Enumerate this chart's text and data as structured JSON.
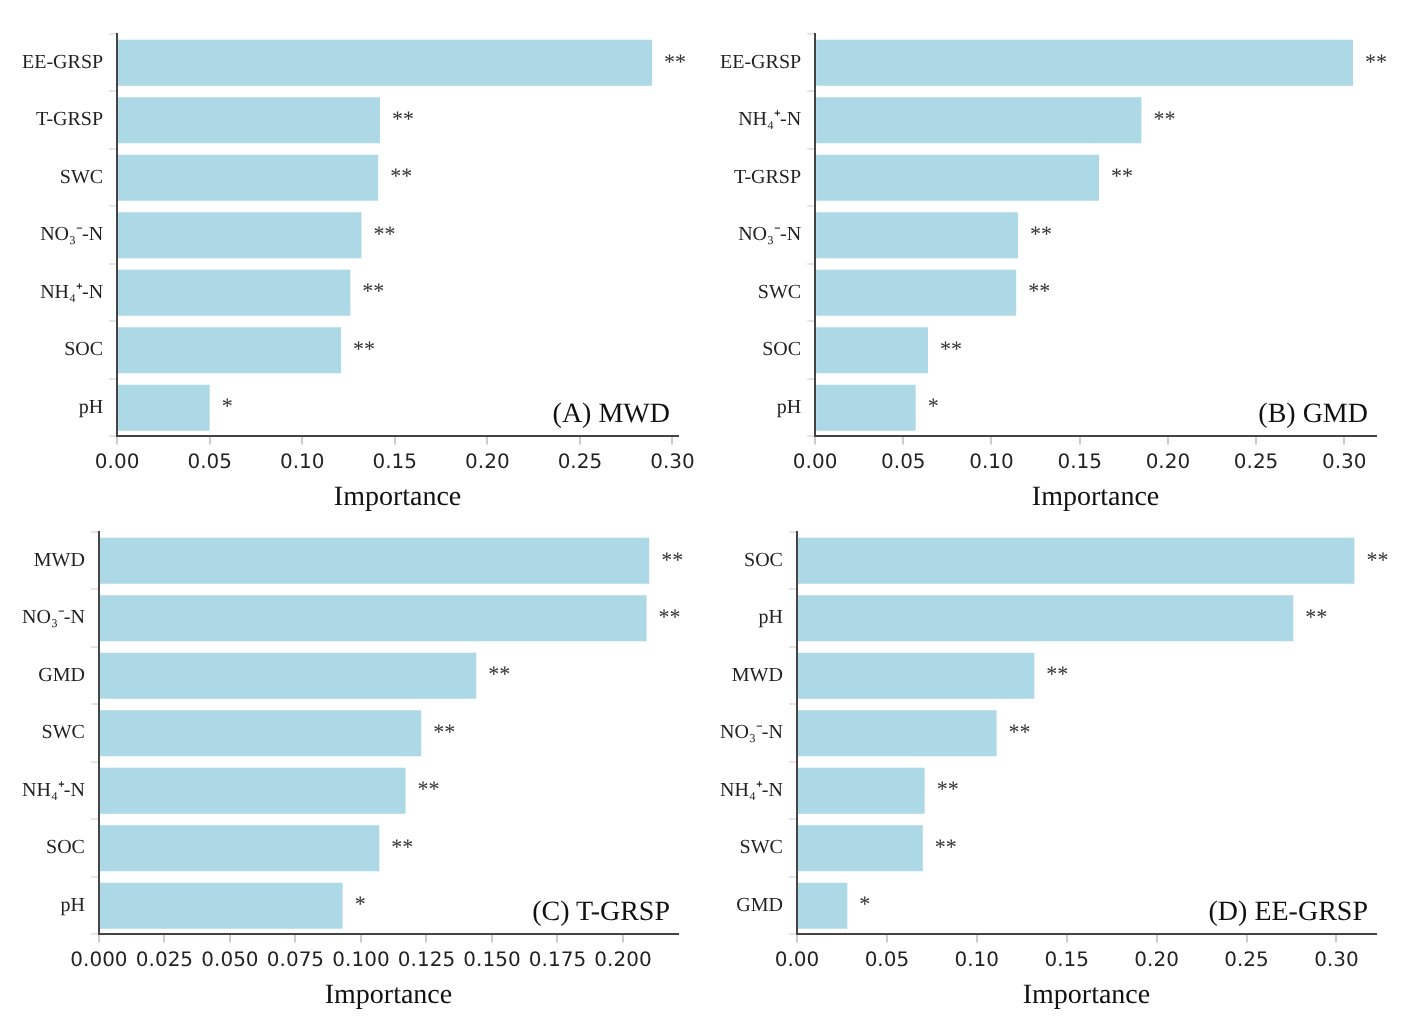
{
  "chart_data": [
    {
      "type": "bar",
      "orientation": "horizontal",
      "categories": [
        "EE-GRSP",
        "T-GRSP",
        "SWC",
        "NO₃⁻-N",
        "NH₄⁺-N",
        "SOC",
        "pH"
      ],
      "values": [
        0.289,
        0.142,
        0.141,
        0.132,
        0.126,
        0.121,
        0.05
      ],
      "value_labels": [
        "**",
        "**",
        "**",
        "**",
        "**",
        "**",
        "*"
      ],
      "color": "#add8e6",
      "xlim": [
        0,
        0.303
      ],
      "xticks": [
        {
          "value": 0,
          "label": "0.00"
        },
        {
          "value": 0.05,
          "label": "0.05"
        },
        {
          "value": 0.1,
          "label": "0.10"
        },
        {
          "value": 0.15,
          "label": "0.15"
        },
        {
          "value": 0.2,
          "label": "0.20"
        },
        {
          "value": 0.25,
          "label": "0.25"
        },
        {
          "value": 0.3,
          "label": "0.30"
        }
      ],
      "xlabel": "Importance",
      "annotations": [
        "(A) MWD"
      ],
      "grid": false,
      "legend": false
    },
    {
      "type": "bar",
      "orientation": "horizontal",
      "categories": [
        "EE-GRSP",
        "NH₄⁺-N",
        "T-GRSP",
        "NO₃⁻-N",
        "SWC",
        "SOC",
        "pH"
      ],
      "values": [
        0.305,
        0.185,
        0.161,
        0.115,
        0.114,
        0.064,
        0.057
      ],
      "value_labels": [
        "**",
        "**",
        "**",
        "**",
        "**",
        "**",
        "*"
      ],
      "color": "#add8e6",
      "xlim": [
        0,
        0.318
      ],
      "xticks": [
        {
          "value": 0,
          "label": "0.00"
        },
        {
          "value": 0.05,
          "label": "0.05"
        },
        {
          "value": 0.1,
          "label": "0.10"
        },
        {
          "value": 0.15,
          "label": "0.15"
        },
        {
          "value": 0.2,
          "label": "0.20"
        },
        {
          "value": 0.25,
          "label": "0.25"
        },
        {
          "value": 0.3,
          "label": "0.30"
        }
      ],
      "xlabel": "Importance",
      "annotations": [
        "(B) GMD"
      ],
      "grid": false,
      "legend": false
    },
    {
      "type": "bar",
      "orientation": "horizontal",
      "categories": [
        "MWD",
        "NO₃⁻-N",
        "GMD",
        "SWC",
        "NH₄⁺-N",
        "SOC",
        "pH"
      ],
      "values": [
        0.21,
        0.209,
        0.144,
        0.123,
        0.117,
        0.107,
        0.093
      ],
      "value_labels": [
        "**",
        "**",
        "**",
        "**",
        "**",
        "**",
        "*"
      ],
      "color": "#add8e6",
      "xlim": [
        0,
        0.221
      ],
      "xticks": [
        {
          "value": 0,
          "label": "0.000"
        },
        {
          "value": 0.025,
          "label": "0.025"
        },
        {
          "value": 0.05,
          "label": "0.050"
        },
        {
          "value": 0.075,
          "label": "0.075"
        },
        {
          "value": 0.1,
          "label": "0.100"
        },
        {
          "value": 0.125,
          "label": "0.125"
        },
        {
          "value": 0.15,
          "label": "0.150"
        },
        {
          "value": 0.175,
          "label": "0.175"
        },
        {
          "value": 0.2,
          "label": "0.200"
        }
      ],
      "xlabel": "Importance",
      "annotations": [
        "(C) T-GRSP"
      ],
      "grid": false,
      "legend": false
    },
    {
      "type": "bar",
      "orientation": "horizontal",
      "categories": [
        "SOC",
        "pH",
        "MWD",
        "NO₃⁻-N",
        "NH₄⁺-N",
        "SWC",
        "GMD"
      ],
      "values": [
        0.31,
        0.276,
        0.132,
        0.111,
        0.071,
        0.07,
        0.028
      ],
      "value_labels": [
        "**",
        "**",
        "**",
        "**",
        "**",
        "**",
        "*"
      ],
      "color": "#add8e6",
      "xlim": [
        0,
        0.322
      ],
      "xticks": [
        {
          "value": 0,
          "label": "0.00"
        },
        {
          "value": 0.05,
          "label": "0.05"
        },
        {
          "value": 0.1,
          "label": "0.10"
        },
        {
          "value": 0.15,
          "label": "0.15"
        },
        {
          "value": 0.2,
          "label": "0.20"
        },
        {
          "value": 0.25,
          "label": "0.25"
        },
        {
          "value": 0.3,
          "label": "0.30"
        }
      ],
      "xlabel": "Importance",
      "annotations": [
        "(D) EE-GRSP"
      ],
      "grid": false,
      "legend": false
    }
  ]
}
